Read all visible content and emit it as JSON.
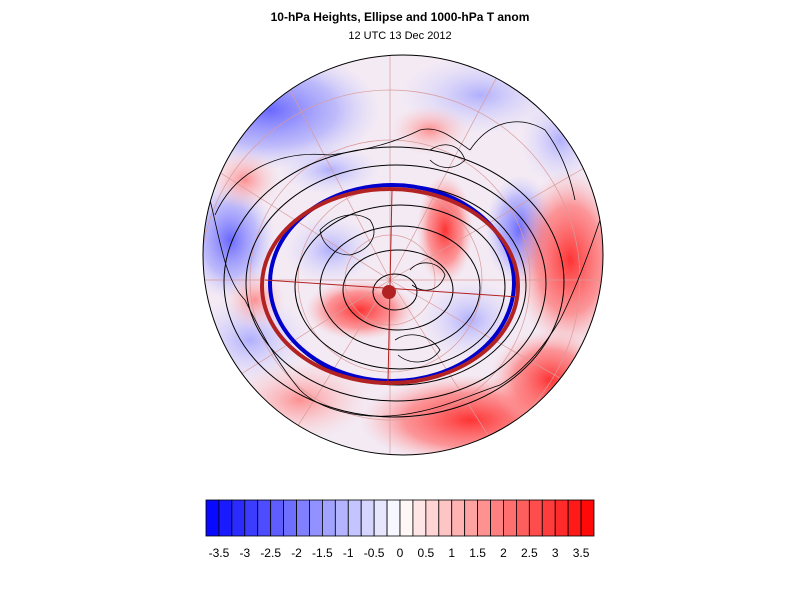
{
  "header": {
    "title": "10-hPa Heights, Ellipse and 1000-hPa T anom",
    "subtitle": "12 UTC 13 Dec 2012"
  },
  "map": {
    "projection": "north-polar-stereographic",
    "field": "temperature anomaly",
    "overlays": [
      "coastlines",
      "graticule",
      "height-contours",
      "fitted-ellipse",
      "observed-vortex-edge",
      "vortex-centroid"
    ],
    "colors": {
      "ellipse": "#b22222",
      "vortex_edge": "#0000cc",
      "centroid": "#b22222",
      "contours": "#000000",
      "graticule": "#d99a9a"
    }
  },
  "colorbar": {
    "levels": [
      -3.75,
      -3.5,
      -3.25,
      -3,
      -2.75,
      -2.5,
      -2.25,
      -2,
      -1.75,
      -1.5,
      -1.25,
      -1,
      -0.75,
      -0.5,
      -0.25,
      0,
      0.25,
      0.5,
      0.75,
      1,
      1.25,
      1.5,
      1.75,
      2,
      2.25,
      2.5,
      2.75,
      3,
      3.25,
      3.5,
      3.75
    ],
    "tick_labels": [
      "-3.5",
      "-3",
      "-2.5",
      "-2",
      "-1.5",
      "-1",
      "-0.5",
      "0",
      "0.5",
      "1",
      "1.5",
      "2",
      "2.5",
      "3",
      "3.5"
    ],
    "min_color": "#0000ff",
    "mid_color": "#ffffff",
    "max_color": "#ff0000"
  }
}
